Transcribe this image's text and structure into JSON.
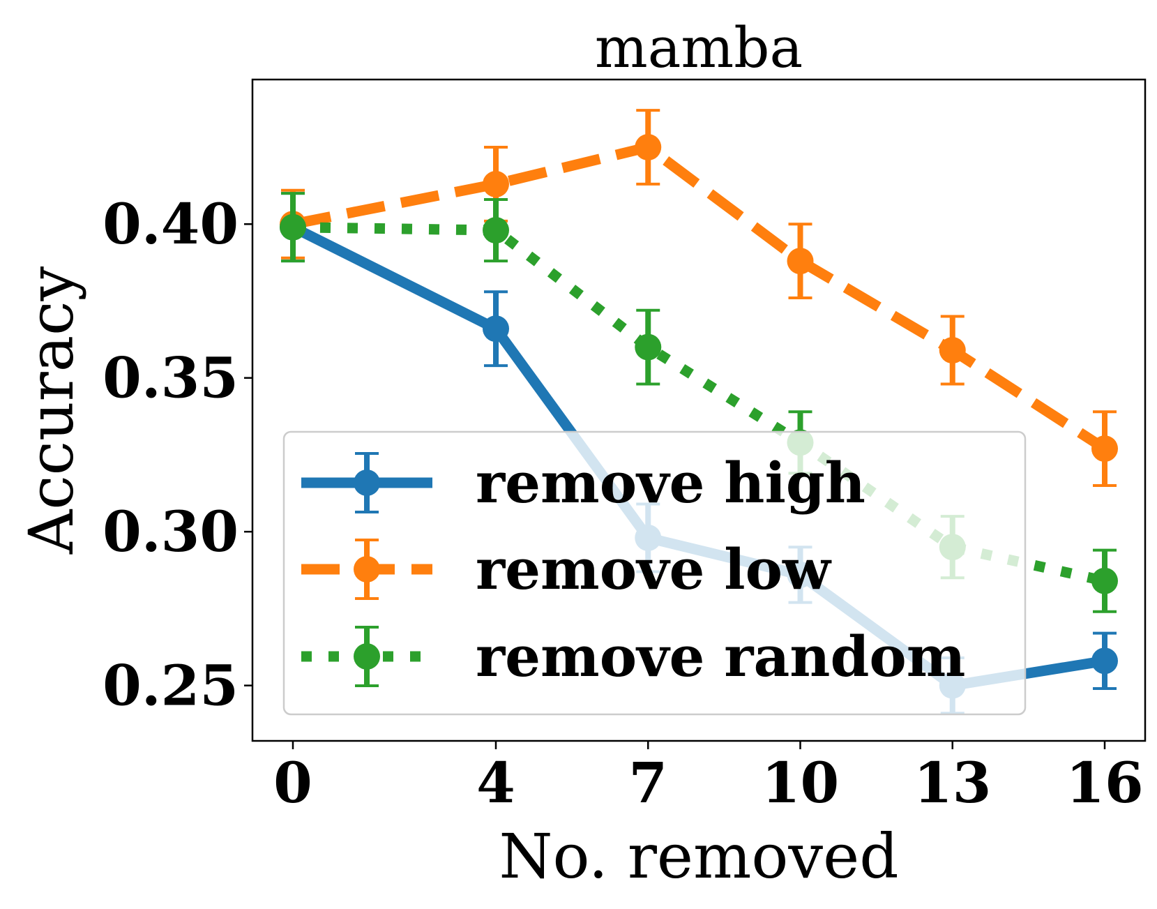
{
  "chart_data": {
    "type": "line",
    "title": "mamba",
    "xlabel": "No. removed",
    "ylabel": "Accuracy",
    "x": [
      0,
      4,
      7,
      10,
      13,
      16
    ],
    "xticks": [
      "0",
      "4",
      "7",
      "10",
      "13",
      "16"
    ],
    "yticks": [
      0.25,
      0.3,
      0.35,
      0.4
    ],
    "ytick_labels": [
      "0.25",
      "0.30",
      "0.35",
      "0.40"
    ],
    "ylim": [
      0.232,
      0.447
    ],
    "grid": false,
    "legend_position": "lower-left",
    "series": [
      {
        "name": "remove high",
        "color": "#1f77b4",
        "linestyle": "solid",
        "values": [
          0.399,
          0.366,
          0.298,
          0.286,
          0.25,
          0.258
        ],
        "errors": [
          0.011,
          0.012,
          0.011,
          0.009,
          0.009,
          0.009
        ]
      },
      {
        "name": "remove low",
        "color": "#ff7f0e",
        "linestyle": "dashed",
        "values": [
          0.4,
          0.413,
          0.425,
          0.388,
          0.359,
          0.327
        ],
        "errors": [
          0.011,
          0.012,
          0.012,
          0.012,
          0.011,
          0.012
        ]
      },
      {
        "name": "remove random",
        "color": "#2ca02c",
        "linestyle": "dotted",
        "values": [
          0.399,
          0.398,
          0.36,
          0.329,
          0.295,
          0.284
        ],
        "errors": [
          0.011,
          0.01,
          0.012,
          0.01,
          0.01,
          0.01
        ]
      }
    ]
  }
}
